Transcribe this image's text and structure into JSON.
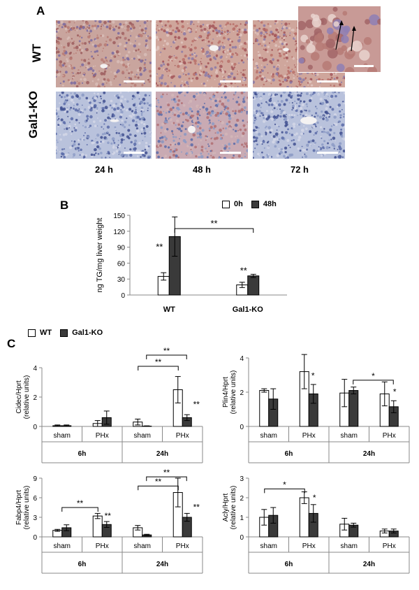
{
  "panel_a": {
    "letter": "A",
    "row_labels": [
      "WT",
      "Gal1-KO"
    ],
    "time_labels": [
      "24 h",
      "48 h",
      "72 h"
    ],
    "inset_arrows": "arrows"
  },
  "panel_b": {
    "letter": "B",
    "legend": [
      "0h",
      "48h"
    ]
  },
  "panel_c": {
    "letter": "C",
    "legend": [
      "WT",
      "Gal1-KO"
    ]
  },
  "colors": {
    "white_bar": "#ffffff",
    "dark_bar": "#3a3a3a",
    "stain_red": "#b77a73",
    "stain_blue": "#8c9bc6"
  },
  "chart_data": [
    {
      "id": "B",
      "type": "bar",
      "ylabel": "ng TG/mg liver weight",
      "categories": [
        "WT",
        "Gal1-KO"
      ],
      "ylim": [
        0,
        150
      ],
      "yticks": [
        0,
        30,
        60,
        90,
        120,
        150
      ],
      "series": [
        {
          "name": "0h",
          "values": [
            35,
            19
          ],
          "errors": [
            7,
            5
          ]
        },
        {
          "name": "48h",
          "values": [
            110,
            36
          ],
          "errors": [
            37,
            3
          ]
        }
      ],
      "annotations": [
        "**",
        "**",
        "**"
      ]
    },
    {
      "id": "C1",
      "type": "bar",
      "ylabel": "Cidec/Hprt (relative units)",
      "ylim": [
        0,
        4
      ],
      "yticks": [
        0,
        2,
        4
      ],
      "groups": [
        "sham",
        "PHx",
        "sham",
        "PHx"
      ],
      "time_labels": [
        "6h",
        "24h"
      ],
      "series": [
        {
          "name": "WT",
          "values": [
            0.05,
            0.2,
            0.3,
            2.5
          ],
          "errors": [
            0.05,
            0.2,
            0.2,
            0.9
          ]
        },
        {
          "name": "Gal1-KO",
          "values": [
            0.05,
            0.6,
            0.02,
            0.6
          ],
          "errors": [
            0.05,
            0.45,
            0.02,
            0.2
          ]
        }
      ],
      "annotations": [
        "**",
        "**",
        "**"
      ]
    },
    {
      "id": "C2",
      "type": "bar",
      "ylabel": "Plin4/Hprt (relative units)",
      "ylim": [
        0,
        4
      ],
      "yticks": [
        0,
        2,
        4
      ],
      "groups": [
        "sham",
        "PHx",
        "sham",
        "PHx"
      ],
      "time_labels": [
        "6h",
        "24h"
      ],
      "series": [
        {
          "name": "WT",
          "values": [
            2.1,
            3.2,
            1.95,
            1.9
          ],
          "errors": [
            0.1,
            1.0,
            0.8,
            0.7
          ]
        },
        {
          "name": "Gal1-KO",
          "values": [
            1.6,
            1.9,
            2.1,
            1.15
          ],
          "errors": [
            0.6,
            0.55,
            0.2,
            0.35
          ]
        }
      ],
      "annotations": [
        "*",
        "*",
        "*"
      ]
    },
    {
      "id": "C3",
      "type": "bar",
      "ylabel": "Fabp4/Hprt (relative units)",
      "ylim": [
        0,
        9
      ],
      "yticks": [
        0,
        3,
        6,
        9
      ],
      "groups": [
        "sham",
        "PHx",
        "sham",
        "PHx"
      ],
      "time_labels": [
        "6h",
        "24h"
      ],
      "series": [
        {
          "name": "WT",
          "values": [
            1.0,
            3.2,
            1.4,
            6.8
          ],
          "errors": [
            0.15,
            0.4,
            0.35,
            2.2
          ]
        },
        {
          "name": "Gal1-KO",
          "values": [
            1.4,
            1.9,
            0.3,
            3.0
          ],
          "errors": [
            0.45,
            0.45,
            0.1,
            0.6
          ]
        }
      ],
      "annotations": [
        "**",
        "**",
        "**",
        "**",
        "**"
      ]
    },
    {
      "id": "C4",
      "type": "bar",
      "ylabel": "Acly/Hprt (relative units)",
      "ylim": [
        0,
        3
      ],
      "yticks": [
        0,
        1,
        2,
        3
      ],
      "groups": [
        "sham",
        "PHx",
        "sham",
        "PHx"
      ],
      "time_labels": [
        "6h",
        "24h"
      ],
      "series": [
        {
          "name": "WT",
          "values": [
            1.0,
            2.0,
            0.65,
            0.3
          ],
          "errors": [
            0.4,
            0.3,
            0.3,
            0.1
          ]
        },
        {
          "name": "Gal1-KO",
          "values": [
            1.1,
            1.2,
            0.6,
            0.3
          ],
          "errors": [
            0.4,
            0.45,
            0.1,
            0.1
          ]
        }
      ],
      "annotations": [
        "*",
        "*"
      ]
    }
  ]
}
